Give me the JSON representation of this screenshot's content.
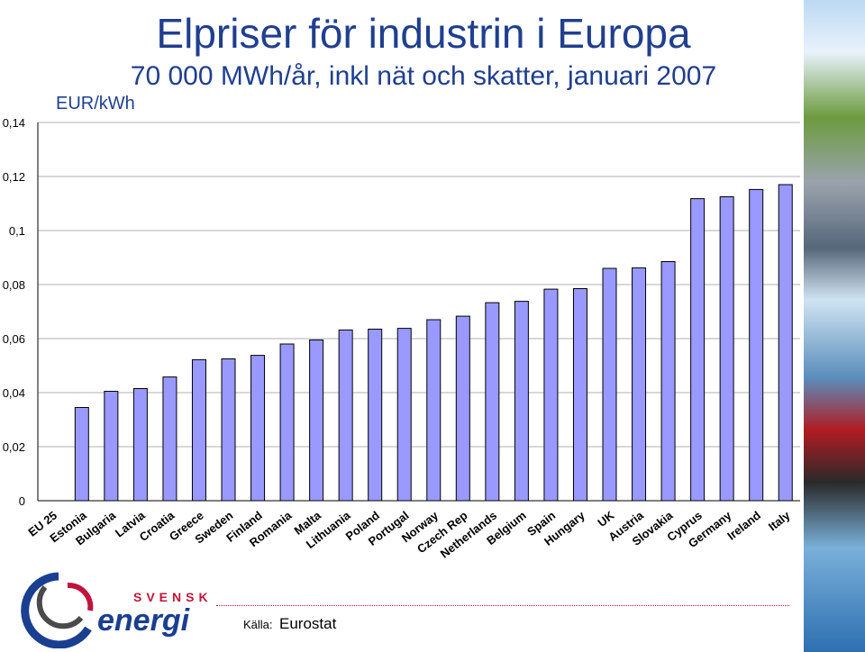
{
  "header": {
    "title": "Elpriser för industrin i Europa",
    "subtitle": "70 000 MWh/år, inkl nät och skatter, januari 2007",
    "unit": "EUR/kWh"
  },
  "footer": {
    "source_label": "Källa:",
    "source_value": "Eurostat",
    "logo_top": "SVENSK",
    "logo_bottom": "energi"
  },
  "colors": {
    "bar_fill": "#9999ff",
    "title": "#1f3f8f",
    "logo_red": "#c0143c",
    "logo_blue": "#1a3f91"
  },
  "chart_data": {
    "type": "bar",
    "title": "",
    "xlabel": "",
    "ylabel": "",
    "ylim": [
      0,
      0.14
    ],
    "yticks": [
      0,
      0.02,
      0.04,
      0.06,
      0.08,
      0.1,
      0.12,
      0.14
    ],
    "ytick_labels": [
      "0",
      "0,02",
      "0,04",
      "0,06",
      "0,08",
      "0,1",
      "0,12",
      "0,14"
    ],
    "grid": "horizontal",
    "categories": [
      "EU 25",
      "Estonia",
      "Bulgaria",
      "Latvia",
      "Croatia",
      "Greece",
      "Sweden",
      "Finland",
      "Romania",
      "Malta",
      "Lithuania",
      "Poland",
      "Portugal",
      "Norway",
      "Czech Rep",
      "Netherlands",
      "Belgium",
      "Spain",
      "Hungary",
      "UK",
      "Austria",
      "Slovakia",
      "Cyprus",
      "Germany",
      "Ireland",
      "Italy"
    ],
    "values": [
      null,
      0.0345,
      0.0405,
      0.0415,
      0.0458,
      0.0522,
      0.0525,
      0.0538,
      0.058,
      0.0595,
      0.0632,
      0.0635,
      0.0638,
      0.067,
      0.0683,
      0.0733,
      0.0738,
      0.0783,
      0.0785,
      0.086,
      0.0862,
      0.0885,
      0.1118,
      0.1125,
      0.1152,
      0.117
    ]
  }
}
